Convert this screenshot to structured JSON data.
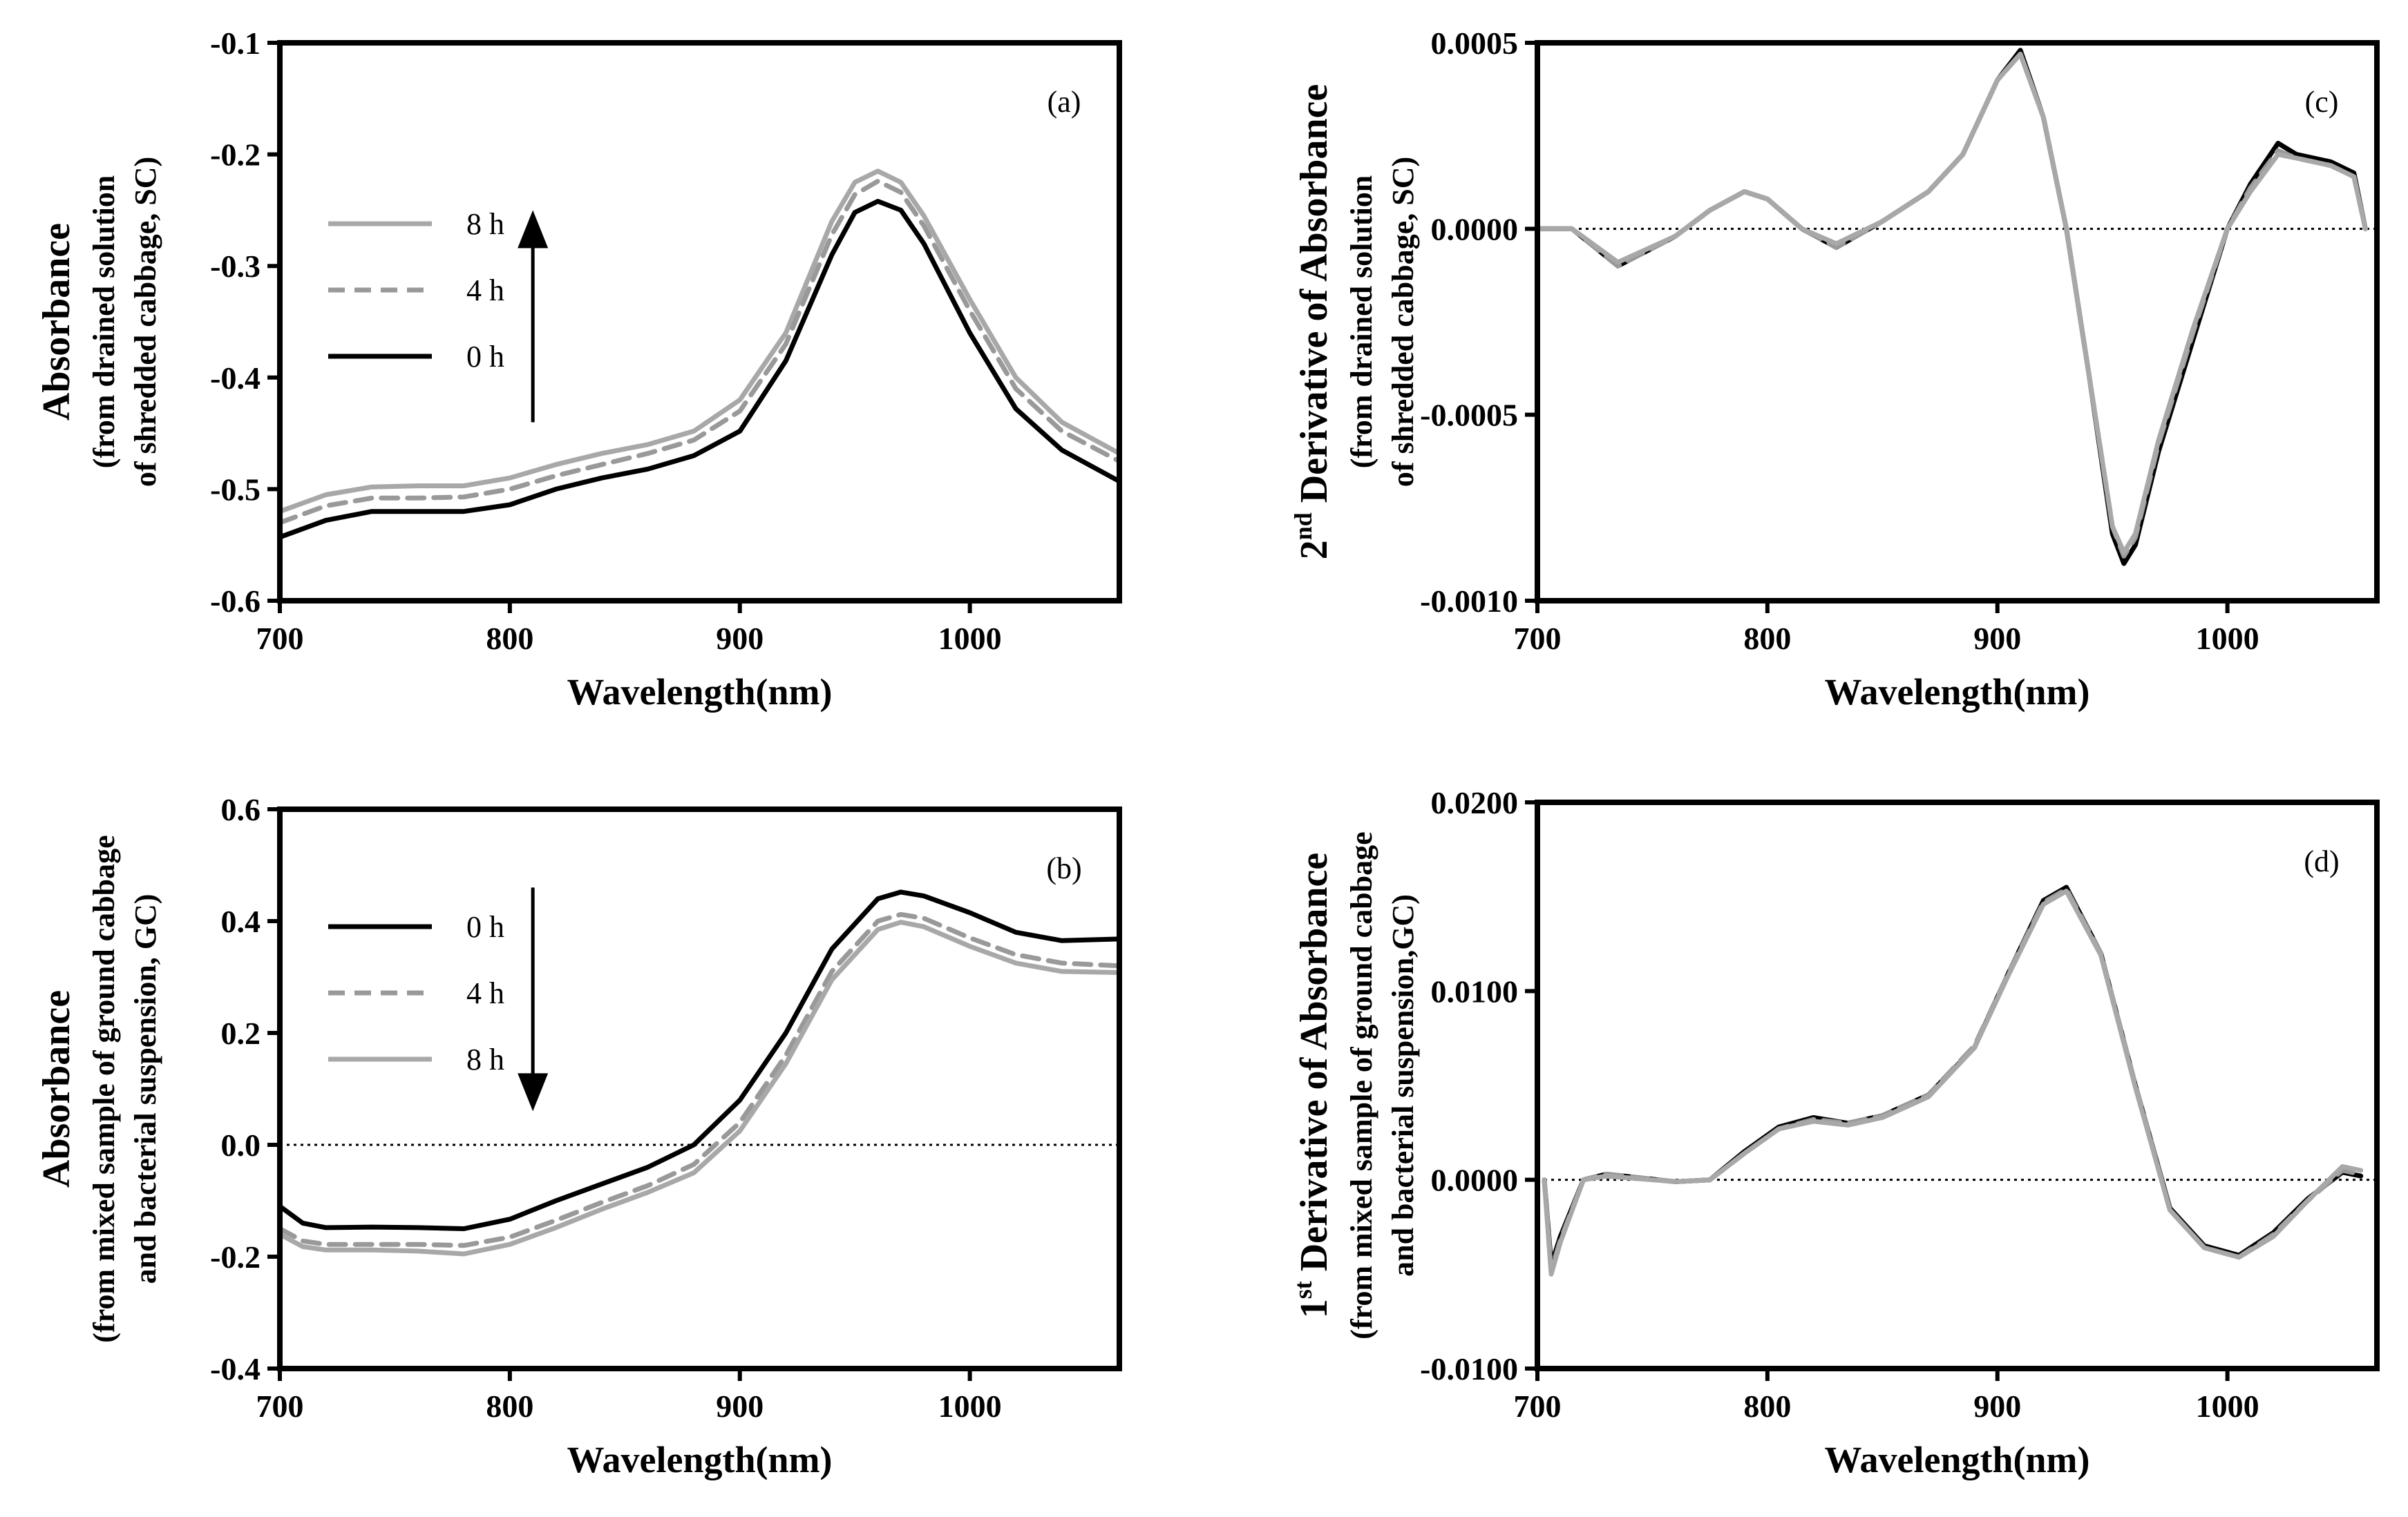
{
  "styles": {
    "0h": {
      "color": "#000000",
      "dash": ""
    },
    "4h": {
      "color": "#999999",
      "dash": "24,14"
    },
    "8h": {
      "color": "#a8a8a8",
      "dash": ""
    }
  },
  "chart_data": [
    {
      "id": "a",
      "type": "line",
      "panel_label": "(a)",
      "xlabel": "Wavelength(nm)",
      "ylabel_main": "Absorbance",
      "ylabel_sub1": "(from drained solution",
      "ylabel_sub2": "of shredded cabbage, SC)",
      "xlim": [
        700,
        1065
      ],
      "ylim": [
        -0.6,
        -0.1
      ],
      "x_ticks": [
        700,
        800,
        900,
        1000
      ],
      "y_ticks": [
        -0.6,
        -0.5,
        -0.4,
        -0.3,
        -0.2,
        -0.1
      ],
      "y_tick_labels": [
        "-0.6",
        "-0.5",
        "-0.4",
        "-0.3",
        "-0.2",
        "-0.1"
      ],
      "legend": {
        "position": "left-middle",
        "items": [
          {
            "label": "8 h",
            "key": "8h"
          },
          {
            "label": "4 h",
            "key": "4h"
          },
          {
            "label": "0 h",
            "key": "0h"
          }
        ]
      },
      "arrow": {
        "direction": "up",
        "x": 810,
        "y_from": -0.44,
        "y_to": -0.25
      },
      "x": [
        700,
        720,
        740,
        760,
        780,
        800,
        820,
        840,
        860,
        880,
        900,
        920,
        940,
        950,
        960,
        970,
        980,
        1000,
        1020,
        1040,
        1065
      ],
      "series": [
        {
          "name": "8 h",
          "key": "8h",
          "values": [
            -0.52,
            -0.505,
            -0.498,
            -0.497,
            -0.497,
            -0.49,
            -0.478,
            -0.468,
            -0.46,
            -0.448,
            -0.42,
            -0.36,
            -0.26,
            -0.225,
            -0.215,
            -0.225,
            -0.255,
            -0.33,
            -0.4,
            -0.44,
            -0.468
          ]
        },
        {
          "name": "4 h",
          "key": "4h",
          "values": [
            -0.53,
            -0.515,
            -0.508,
            -0.508,
            -0.507,
            -0.5,
            -0.488,
            -0.478,
            -0.468,
            -0.456,
            -0.43,
            -0.37,
            -0.272,
            -0.236,
            -0.224,
            -0.234,
            -0.264,
            -0.34,
            -0.41,
            -0.448,
            -0.475
          ]
        },
        {
          "name": "0 h",
          "key": "0h",
          "values": [
            -0.543,
            -0.528,
            -0.52,
            -0.52,
            -0.52,
            -0.514,
            -0.5,
            -0.49,
            -0.482,
            -0.47,
            -0.448,
            -0.385,
            -0.29,
            -0.252,
            -0.242,
            -0.25,
            -0.28,
            -0.36,
            -0.428,
            -0.465,
            -0.493
          ]
        }
      ]
    },
    {
      "id": "b",
      "type": "line",
      "panel_label": "(b)",
      "xlabel": "Wavelength(nm)",
      "ylabel_main": "Absorbance",
      "ylabel_sub1": "(from mixed sample of ground cabbage",
      "ylabel_sub2": "and bacterial suspension, GC)",
      "xlim": [
        700,
        1065
      ],
      "ylim": [
        -0.4,
        0.6
      ],
      "x_ticks": [
        700,
        800,
        900,
        1000
      ],
      "y_ticks": [
        -0.4,
        -0.2,
        0.0,
        0.2,
        0.4,
        0.6
      ],
      "y_tick_labels": [
        "-0.4",
        "-0.2",
        "0.0",
        "0.2",
        "0.4",
        "0.6"
      ],
      "zero_line": true,
      "legend": {
        "position": "top-left",
        "items": [
          {
            "label": "0 h",
            "key": "0h"
          },
          {
            "label": "4 h",
            "key": "4h"
          },
          {
            "label": "8 h",
            "key": "8h"
          }
        ]
      },
      "arrow": {
        "direction": "down",
        "x": 810,
        "y_from": 0.46,
        "y_to": 0.06
      },
      "x": [
        700,
        710,
        720,
        740,
        760,
        780,
        800,
        820,
        840,
        860,
        880,
        900,
        920,
        940,
        960,
        970,
        980,
        1000,
        1020,
        1040,
        1065
      ],
      "series": [
        {
          "name": "0 h",
          "key": "0h",
          "values": [
            -0.11,
            -0.14,
            -0.148,
            -0.147,
            -0.148,
            -0.15,
            -0.133,
            -0.1,
            -0.07,
            -0.04,
            0.0,
            0.08,
            0.2,
            0.35,
            0.44,
            0.452,
            0.445,
            0.415,
            0.38,
            0.365,
            0.368
          ]
        },
        {
          "name": "4 h",
          "key": "4h",
          "values": [
            -0.15,
            -0.172,
            -0.178,
            -0.178,
            -0.178,
            -0.18,
            -0.165,
            -0.135,
            -0.103,
            -0.073,
            -0.035,
            0.04,
            0.16,
            0.31,
            0.4,
            0.412,
            0.405,
            0.37,
            0.34,
            0.325,
            0.32
          ]
        },
        {
          "name": "8 h",
          "key": "8h",
          "values": [
            -0.16,
            -0.182,
            -0.188,
            -0.188,
            -0.19,
            -0.195,
            -0.178,
            -0.148,
            -0.115,
            -0.085,
            -0.05,
            0.025,
            0.145,
            0.295,
            0.385,
            0.398,
            0.39,
            0.355,
            0.325,
            0.31,
            0.308
          ]
        }
      ]
    },
    {
      "id": "c",
      "type": "line",
      "panel_label": "(c)",
      "xlabel": "Wavelength(nm)",
      "ylabel_main": "2nd Derivative of Absorbance",
      "ylabel_sup_base": "2",
      "ylabel_sup": "nd",
      "ylabel_rest": " Derivative of Absorbance",
      "ylabel_sub1": "(from drained solution",
      "ylabel_sub2": "of shredded cabbage, SC)",
      "xlim": [
        700,
        1065
      ],
      "ylim": [
        -0.001,
        0.0005
      ],
      "x_ticks": [
        700,
        800,
        900,
        1000
      ],
      "y_ticks": [
        -0.001,
        -0.0005,
        0.0,
        0.0005
      ],
      "y_tick_labels": [
        "-0.0010",
        "-0.0005",
        "0.0000",
        "0.0005"
      ],
      "zero_line": true,
      "x": [
        700,
        715,
        735,
        760,
        775,
        790,
        800,
        815,
        830,
        850,
        870,
        885,
        900,
        910,
        920,
        930,
        940,
        950,
        955,
        960,
        970,
        985,
        1000,
        1010,
        1022,
        1030,
        1045,
        1055,
        1060
      ],
      "series": [
        {
          "name": "0 h",
          "key": "0h",
          "values": [
            0.0,
            0.0,
            -0.0001,
            -2e-05,
            5e-05,
            0.0001,
            8e-05,
            0.0,
            -5e-05,
            2e-05,
            0.0001,
            0.0002,
            0.0004,
            0.00048,
            0.0003,
            0.0,
            -0.0004,
            -0.00082,
            -0.0009,
            -0.00085,
            -0.0006,
            -0.0003,
            0.0,
            0.00012,
            0.00023,
            0.0002,
            0.00018,
            0.00015,
            0.0
          ]
        },
        {
          "name": "4 h",
          "key": "4h",
          "values": [
            0.0,
            0.0,
            -0.0001,
            -2e-05,
            5e-05,
            0.0001,
            8e-05,
            0.0,
            -5e-05,
            2e-05,
            0.0001,
            0.0002,
            0.0004,
            0.00047,
            0.0003,
            0.0,
            -0.0004,
            -0.0008,
            -0.00088,
            -0.00083,
            -0.00058,
            -0.00028,
            0.0,
            0.00011,
            0.00021,
            0.00019,
            0.00017,
            0.00014,
            0.0
          ]
        },
        {
          "name": "8 h",
          "key": "8h",
          "values": [
            0.0,
            0.0,
            -9e-05,
            -2e-05,
            5e-05,
            0.0001,
            8e-05,
            0.0,
            -4e-05,
            2e-05,
            0.0001,
            0.0002,
            0.0004,
            0.00047,
            0.0003,
            0.0,
            -0.0004,
            -0.0008,
            -0.00087,
            -0.00082,
            -0.00057,
            -0.00027,
            0.0,
            0.0001,
            0.0002,
            0.00019,
            0.00017,
            0.00014,
            0.0
          ]
        }
      ]
    },
    {
      "id": "d",
      "type": "line",
      "panel_label": "(d)",
      "xlabel": "Wavelength(nm)",
      "ylabel_sup_base": "1",
      "ylabel_sup": "st",
      "ylabel_rest": " Derivative of Absorbance",
      "ylabel_sub1": "(from mixed sample of ground cabbage",
      "ylabel_sub2": "and bacterial suspension,GC)",
      "xlim": [
        700,
        1065
      ],
      "ylim": [
        -0.01,
        0.02
      ],
      "x_ticks": [
        700,
        800,
        900,
        1000
      ],
      "y_ticks": [
        -0.01,
        0.0,
        0.01,
        0.02
      ],
      "y_tick_labels": [
        "-0.0100",
        "0.0000",
        "0.0100",
        "0.0200"
      ],
      "zero_line": true,
      "x": [
        703,
        706,
        710,
        720,
        730,
        760,
        775,
        790,
        805,
        820,
        835,
        850,
        870,
        890,
        905,
        920,
        930,
        945,
        960,
        975,
        990,
        1005,
        1020,
        1035,
        1050,
        1058
      ],
      "series": [
        {
          "name": "0 h",
          "key": "0h",
          "values": [
            0.0,
            -0.0045,
            -0.003,
            0.0,
            0.0003,
            -0.0001,
            0.0,
            0.0015,
            0.0028,
            0.0033,
            0.003,
            0.0034,
            0.0045,
            0.007,
            0.011,
            0.0148,
            0.0155,
            0.012,
            0.005,
            -0.0015,
            -0.0035,
            -0.004,
            -0.0028,
            -0.001,
            0.0004,
            0.0002
          ]
        },
        {
          "name": "4 h",
          "key": "4h",
          "values": [
            0.0,
            -0.0048,
            -0.0032,
            0.0,
            0.0003,
            -0.0001,
            0.0,
            0.0014,
            0.0027,
            0.0032,
            0.003,
            0.0034,
            0.0045,
            0.0071,
            0.011,
            0.0147,
            0.0154,
            0.012,
            0.005,
            -0.0016,
            -0.0036,
            -0.0041,
            -0.0029,
            -0.0011,
            0.0005,
            0.0003
          ]
        },
        {
          "name": "8 h",
          "key": "8h",
          "values": [
            0.0,
            -0.005,
            -0.0033,
            0.0,
            0.0002,
            -0.0001,
            0.0,
            0.0014,
            0.0027,
            0.0031,
            0.0029,
            0.0033,
            0.0044,
            0.007,
            0.0109,
            0.0146,
            0.0153,
            0.0119,
            0.0049,
            -0.0016,
            -0.0036,
            -0.0041,
            -0.003,
            -0.0011,
            0.0007,
            0.0005
          ]
        }
      ]
    }
  ]
}
